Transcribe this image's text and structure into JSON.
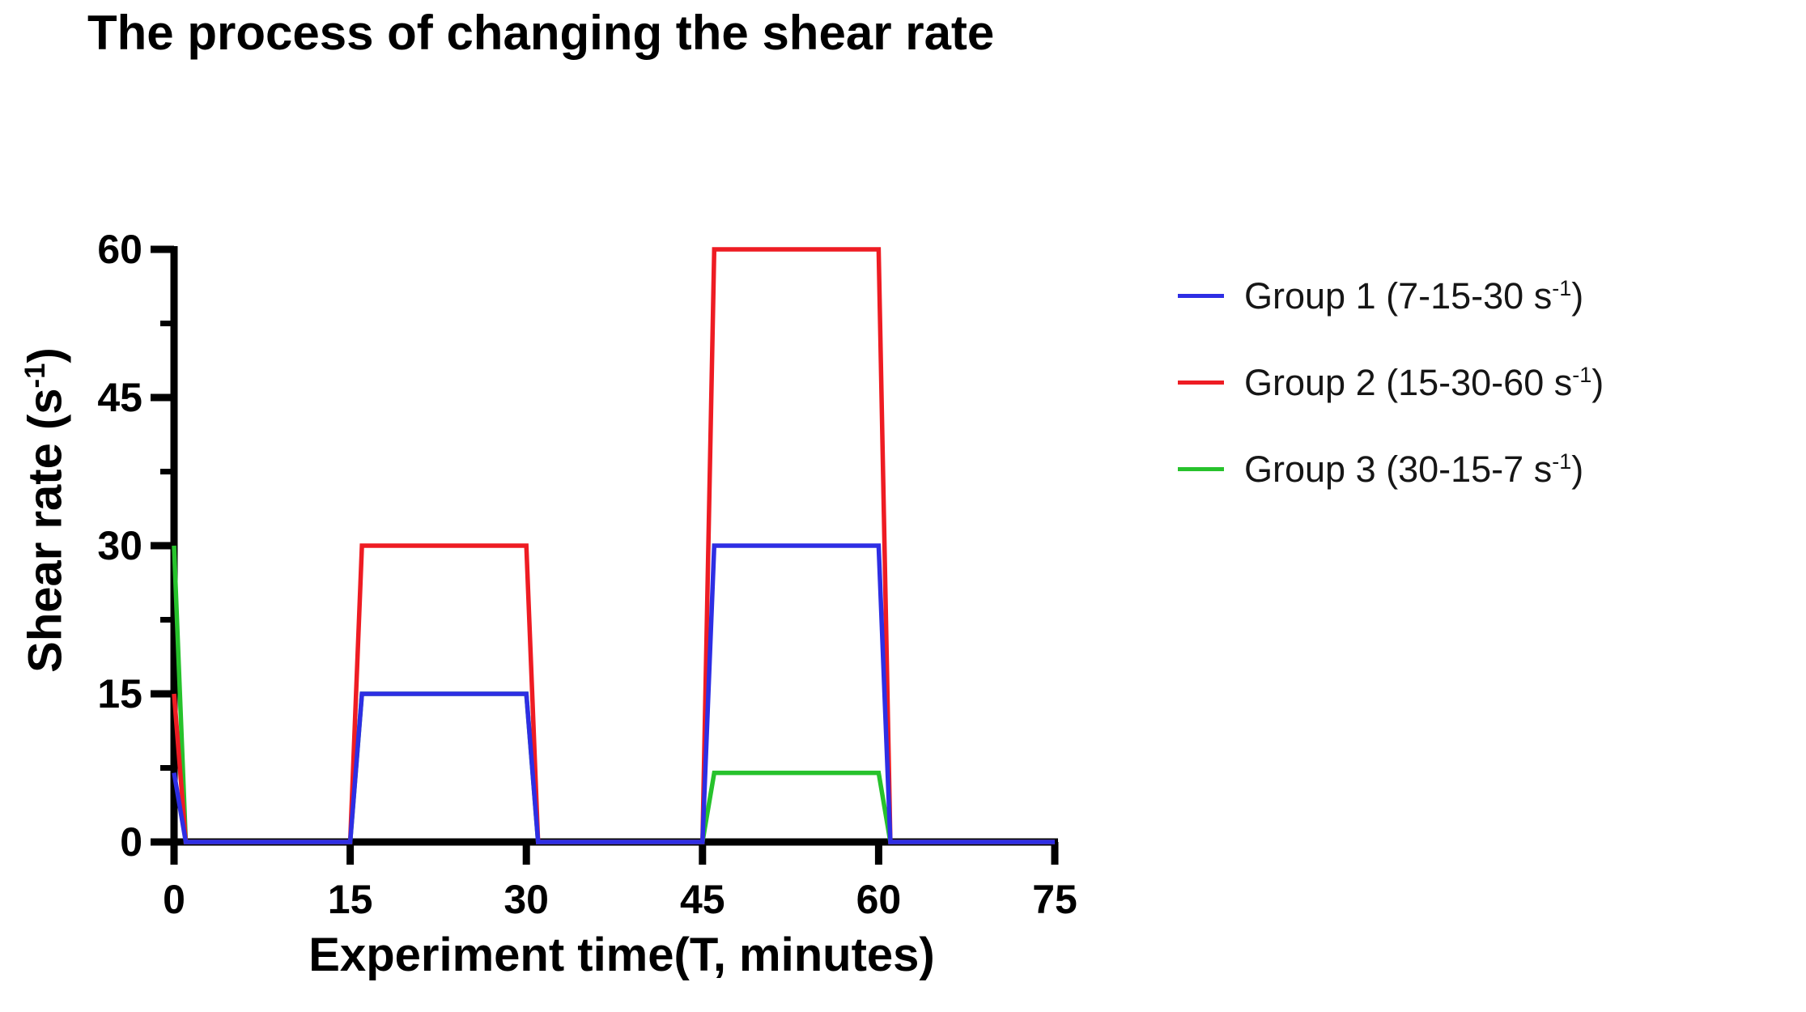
{
  "labels": {
    "title": "The process of changing the shear rate",
    "xlabel": "Experiment time(T, minutes)",
    "ylabel": {
      "main": "Shear rate (s",
      "sup": "-1",
      "close": ")"
    }
  },
  "legend": {
    "items": [
      {
        "color": "#2e2ee4",
        "main": "Group 1 (7-15-30 s",
        "sup": "-1",
        "close": ")"
      },
      {
        "color": "#ee1c23",
        "main": "Group 2 (15-30-60 s",
        "sup": "-1",
        "close": ")"
      },
      {
        "color": "#27c22c",
        "main": "Group 3 (30-15-7 s",
        "sup": "-1",
        "close": ")"
      }
    ]
  },
  "chart_data": {
    "type": "line",
    "title": "The process of changing the shear rate",
    "xlabel": "Experiment time(T, minutes)",
    "ylabel": "Shear rate (s-1)",
    "xlim": [
      0,
      75
    ],
    "ylim": [
      0,
      60
    ],
    "x_ticks": [
      0,
      15,
      30,
      45,
      60,
      75
    ],
    "y_ticks": [
      0,
      15,
      30,
      45,
      60
    ],
    "y_minor_ticks": [
      7.5,
      22.5,
      37.5,
      52.5
    ],
    "grid": false,
    "legend_position": "right",
    "axis_color": "#000000",
    "series": [
      {
        "name": "Group 1 (7-15-30 s-1)",
        "color": "#2e2ee4",
        "points": [
          [
            0,
            7
          ],
          [
            1,
            0
          ],
          [
            15,
            0
          ],
          [
            16,
            15
          ],
          [
            30,
            15
          ],
          [
            31,
            0
          ],
          [
            45,
            0
          ],
          [
            46,
            30
          ],
          [
            60,
            30
          ],
          [
            61,
            0
          ],
          [
            75,
            0
          ]
        ]
      },
      {
        "name": "Group 2 (15-30-60 s-1)",
        "color": "#ee1c23",
        "points": [
          [
            0,
            15
          ],
          [
            1,
            0
          ],
          [
            15,
            0
          ],
          [
            16,
            30
          ],
          [
            30,
            30
          ],
          [
            31,
            0
          ],
          [
            45,
            0
          ],
          [
            46,
            60
          ],
          [
            60,
            60
          ],
          [
            61,
            0
          ],
          [
            75,
            0
          ]
        ]
      },
      {
        "name": "Group 3 (30-15-7 s-1)",
        "color": "#27c22c",
        "points": [
          [
            0,
            30
          ],
          [
            1,
            0
          ],
          [
            15,
            0
          ],
          [
            16,
            15
          ],
          [
            30,
            15
          ],
          [
            31,
            0
          ],
          [
            45,
            0
          ],
          [
            46,
            7
          ],
          [
            60,
            7
          ],
          [
            61,
            0
          ],
          [
            75,
            0
          ]
        ]
      }
    ]
  }
}
